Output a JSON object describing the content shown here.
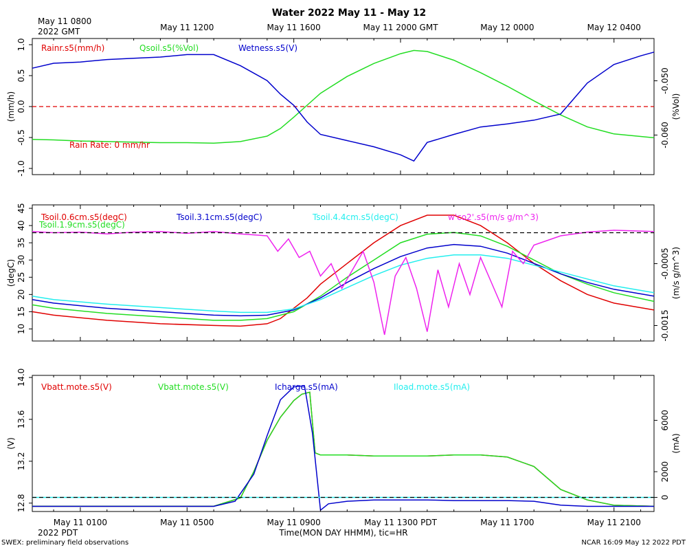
{
  "title": "Water 2022 May 11 - May 12",
  "top_axis": {
    "first_label_line1": "May 11 0800",
    "first_label_line2": "2022 GMT",
    "labels": [
      "May 11 1200",
      "May 11 1600",
      "May 11 2000 GMT",
      "May 12 0000",
      "May 12 0400"
    ]
  },
  "bottom_axis": {
    "labels": [
      "May 11 0100",
      "May 11 0500",
      "May 11 0900",
      "May 11 1300 PDT",
      "May 11 1700",
      "May 11 2100"
    ],
    "year_label": "2022 PDT",
    "caption": "Time(MON DAY HHMM), tic=HR"
  },
  "footer": {
    "left": "SWEX: preliminary field observations",
    "right": "NCAR 16:09 May 12 2022 PDT"
  },
  "colors": {
    "red": "#e00000",
    "green": "#22dd22",
    "blue": "#0000cc",
    "cyan": "#22eeee",
    "magenta": "#ee22ee",
    "black": "#000000"
  },
  "chart_data": [
    {
      "type": "line",
      "title": "Water",
      "x": "hours since May 11 0000 PDT",
      "xlim": [
        -0.8,
        22.5
      ],
      "left_axis": {
        "label": "(mm/h)",
        "ylim": [
          -1.1,
          1.1
        ],
        "ticks": [
          1.0,
          0.5,
          0.0,
          -0.5,
          -1.0
        ],
        "tick_labels": [
          "1.0",
          "0.5",
          "0.0",
          "-0.5",
          "-1.0"
        ]
      },
      "right_axis": {
        "label": "(%Vol)",
        "ylim": [
          -0.0673,
          -0.0422
        ],
        "ticks": [
          -0.05,
          -0.06
        ],
        "tick_labels": [
          "-0.050",
          "-0.060"
        ]
      },
      "annotation": "Rain Rate: 0 mm/hr",
      "series": [
        {
          "name": "Rainr.s5(mm/h)",
          "color": "red",
          "axis": "left",
          "dashed": true,
          "x": [
            -0.8,
            22.5
          ],
          "values": [
            0.0,
            0.0
          ]
        },
        {
          "name": "Qsoil.s5(%Vol)",
          "color": "green",
          "axis": "right",
          "x": [
            -0.8,
            0,
            1,
            2,
            3,
            4,
            5,
            6,
            7,
            8,
            8.5,
            9,
            9.5,
            10,
            11,
            12,
            13,
            13.5,
            14,
            15,
            16,
            17,
            18,
            19,
            20,
            21,
            22.5
          ],
          "values": [
            -0.0608,
            -0.0609,
            -0.0611,
            -0.0612,
            -0.0613,
            -0.0614,
            -0.0614,
            -0.0615,
            -0.0612,
            -0.0602,
            -0.0588,
            -0.0567,
            -0.0545,
            -0.0523,
            -0.0492,
            -0.0468,
            -0.045,
            -0.0444,
            -0.0446,
            -0.0462,
            -0.0485,
            -0.051,
            -0.0537,
            -0.0563,
            -0.0585,
            -0.0598,
            -0.0605
          ]
        },
        {
          "name": "Wetness.s5(V)",
          "color": "blue",
          "axis": "left",
          "x": [
            -0.8,
            0,
            1,
            2,
            3,
            4,
            5,
            6,
            7,
            8,
            8.5,
            9,
            9.5,
            10,
            11,
            12,
            13,
            13.5,
            14,
            15,
            16,
            17,
            18,
            19,
            20,
            21,
            22,
            22.5
          ],
          "values": [
            0.62,
            0.7,
            0.72,
            0.76,
            0.78,
            0.8,
            0.84,
            0.84,
            0.66,
            0.42,
            0.2,
            0.02,
            -0.25,
            -0.45,
            -0.55,
            -0.65,
            -0.78,
            -0.88,
            -0.58,
            -0.45,
            -0.33,
            -0.28,
            -0.22,
            -0.12,
            0.38,
            0.68,
            0.82,
            0.88
          ]
        }
      ]
    },
    {
      "type": "line",
      "x": "hours since May 11 0000 PDT",
      "xlim": [
        -0.8,
        22.5
      ],
      "left_axis": {
        "label": "(degC)",
        "ylim": [
          6.5,
          46
        ],
        "ticks": [
          45,
          40,
          35,
          30,
          25,
          20,
          15,
          10
        ],
        "tick_labels": [
          "45",
          "40",
          "35",
          "30",
          "25",
          "20",
          "15",
          "10"
        ]
      },
      "right_axis": {
        "label": "(m/s g/m^3)",
        "ylim": [
          -0.00175,
          0.00045
        ],
        "ticks": [
          -0.0005,
          -0.0015
        ],
        "tick_labels": [
          "-0.0005",
          "-0.0015"
        ]
      },
      "series": [
        {
          "name": "Tsoil.0.6cm.s5(degC)",
          "color": "red",
          "axis": "left",
          "x": [
            -0.8,
            0,
            2,
            4,
            6,
            7,
            8,
            8.5,
            9,
            9.5,
            10,
            11,
            12,
            13,
            14,
            15,
            16,
            17,
            18,
            19,
            20,
            21,
            22.5
          ],
          "values": [
            15,
            14,
            12.5,
            11.5,
            11,
            10.8,
            11.5,
            13,
            16,
            19,
            23,
            29,
            35,
            40,
            43,
            43,
            40,
            35,
            29,
            24,
            20,
            17.5,
            15.5
          ]
        },
        {
          "name": "Tsoil.1.9cm.s5(degC)",
          "color": "green",
          "axis": "left",
          "x": [
            -0.8,
            0,
            2,
            4,
            6,
            7,
            8,
            9,
            10,
            11,
            12,
            13,
            14,
            15,
            16,
            17,
            18,
            19,
            20,
            21,
            22.5
          ],
          "values": [
            17,
            16,
            14.5,
            13.5,
            12.5,
            12.5,
            13,
            15,
            19.5,
            25,
            30,
            35,
            37.5,
            38,
            37,
            34,
            30,
            26,
            23,
            20.5,
            18
          ]
        },
        {
          "name": "Tsoil.3.1cm.s5(degC)",
          "color": "blue",
          "axis": "left",
          "x": [
            -0.8,
            0,
            2,
            4,
            6,
            7,
            8,
            9,
            10,
            11,
            12,
            13,
            14,
            15,
            16,
            17,
            18,
            19,
            20,
            21,
            22.5
          ],
          "values": [
            18.5,
            17.5,
            16,
            15,
            14,
            13.8,
            14,
            15.5,
            19,
            23.5,
            27.5,
            31,
            33.5,
            34.5,
            34,
            32,
            29,
            26,
            23.5,
            21.5,
            19.5
          ]
        },
        {
          "name": "Tsoil.4.4cm.s5(degC)",
          "color": "cyan",
          "axis": "left",
          "x": [
            -0.8,
            0,
            2,
            4,
            6,
            7,
            8,
            9,
            10,
            11,
            12,
            13,
            14,
            15,
            16,
            17,
            18,
            19,
            20,
            21,
            22.5
          ],
          "values": [
            19.5,
            18.5,
            17.2,
            16.2,
            15.2,
            14.8,
            14.8,
            15.8,
            18.5,
            22,
            25.5,
            28.5,
            30.5,
            31.5,
            31.5,
            30.5,
            28.5,
            26.5,
            24.5,
            22.5,
            20.5
          ]
        },
        {
          "name": "w'co2'.s5(m/s g/m^3)",
          "color": "magenta",
          "axis": "right",
          "x": [
            -0.8,
            0,
            1,
            2,
            3,
            4,
            5,
            6,
            7,
            8,
            8.4,
            8.8,
            9.2,
            9.6,
            10,
            10.4,
            10.8,
            11.2,
            11.6,
            12,
            12.4,
            12.8,
            13.2,
            13.6,
            14,
            14.4,
            14.8,
            15.2,
            15.6,
            16,
            16.4,
            16.8,
            17.2,
            17.6,
            18,
            19,
            20,
            21,
            22.5
          ],
          "values": [
            2e-05,
            0.0,
            1e-05,
            -2e-05,
            1e-05,
            2e-05,
            -1e-05,
            2e-05,
            -2e-05,
            -5e-05,
            -0.0003,
            -0.0001,
            -0.0004,
            -0.0003,
            -0.0007,
            -0.0005,
            -0.0009,
            -0.0006,
            -0.0003,
            -0.0008,
            -0.00165,
            -0.0007,
            -0.0004,
            -0.0009,
            -0.0016,
            -0.0006,
            -0.0012,
            -0.0005,
            -0.001,
            -0.0004,
            -0.0008,
            -0.0012,
            -0.0003,
            -0.0005,
            -0.0002,
            -5e-05,
            1e-05,
            4e-05,
            2e-05
          ]
        },
        {
          "name": "zero",
          "color": "black",
          "axis": "right",
          "dashed": true,
          "x": [
            -0.8,
            22.5
          ],
          "values": [
            0.0,
            0.0
          ]
        }
      ]
    },
    {
      "type": "line",
      "x": "hours since May 11 0000 PDT",
      "xlim": [
        -0.8,
        22.5
      ],
      "left_axis": {
        "label": "(V)",
        "ylim": [
          12.72,
          14.02
        ],
        "ticks": [
          14.0,
          13.6,
          13.2,
          12.8
        ],
        "tick_labels": [
          "14.0",
          "13.6",
          "13.2",
          "12.8"
        ]
      },
      "right_axis": {
        "label": "(mA)",
        "ylim": [
          -1100,
          9500
        ],
        "ticks": [
          6000,
          2000,
          0
        ],
        "tick_labels": [
          "6000",
          "2000",
          "0"
        ]
      },
      "series": [
        {
          "name": "Vbatt.mote.s5(V)",
          "color": "red",
          "axis": "left",
          "x": [
            -0.8,
            0,
            2,
            4,
            6,
            7,
            7.5,
            8,
            8.5,
            9,
            9.3,
            9.6,
            9.8,
            10,
            11,
            12,
            13,
            14,
            15,
            16,
            17,
            18,
            19,
            20,
            21,
            22.5
          ],
          "values": [
            12.77,
            12.77,
            12.77,
            12.77,
            12.77,
            12.85,
            13.1,
            13.4,
            13.62,
            13.78,
            13.84,
            13.86,
            13.28,
            13.26,
            13.26,
            13.25,
            13.25,
            13.25,
            13.26,
            13.26,
            13.24,
            13.15,
            12.93,
            12.83,
            12.78,
            12.77
          ]
        },
        {
          "name": "Vbatt.mote.s5(V)",
          "color": "green",
          "axis": "left",
          "x": [
            -0.8,
            0,
            2,
            4,
            6,
            7,
            7.5,
            8,
            8.5,
            9,
            9.3,
            9.6,
            9.8,
            10,
            11,
            12,
            13,
            14,
            15,
            16,
            17,
            18,
            19,
            20,
            21,
            22.5
          ],
          "values": [
            12.77,
            12.77,
            12.77,
            12.77,
            12.77,
            12.85,
            13.1,
            13.4,
            13.62,
            13.78,
            13.84,
            13.86,
            13.28,
            13.26,
            13.26,
            13.25,
            13.25,
            13.25,
            13.26,
            13.26,
            13.24,
            13.15,
            12.93,
            12.83,
            12.78,
            12.77
          ]
        },
        {
          "name": "Icharge.s5(mA)",
          "color": "blue",
          "axis": "right",
          "x": [
            -0.8,
            0,
            2,
            4,
            6,
            6.8,
            7.5,
            8,
            8.5,
            9,
            9.4,
            9.7,
            10,
            10.3,
            11,
            12,
            13,
            14,
            15,
            16,
            17,
            18,
            19,
            20,
            21,
            22.5
          ],
          "values": [
            -700,
            -700,
            -700,
            -700,
            -700,
            -300,
            1800,
            4800,
            7600,
            8600,
            8700,
            5000,
            -1000,
            -500,
            -300,
            -200,
            -200,
            -200,
            -250,
            -250,
            -250,
            -300,
            -600,
            -700,
            -700,
            -700
          ]
        },
        {
          "name": "Iload.mote.s5(mA)",
          "color": "cyan",
          "axis": "right",
          "x": [
            -0.8,
            22.5
          ],
          "values": [
            0,
            0
          ]
        },
        {
          "name": "zero",
          "color": "black",
          "axis": "right",
          "dashed": true,
          "x": [
            -0.8,
            22.5
          ],
          "values": [
            0,
            0
          ]
        }
      ]
    }
  ]
}
